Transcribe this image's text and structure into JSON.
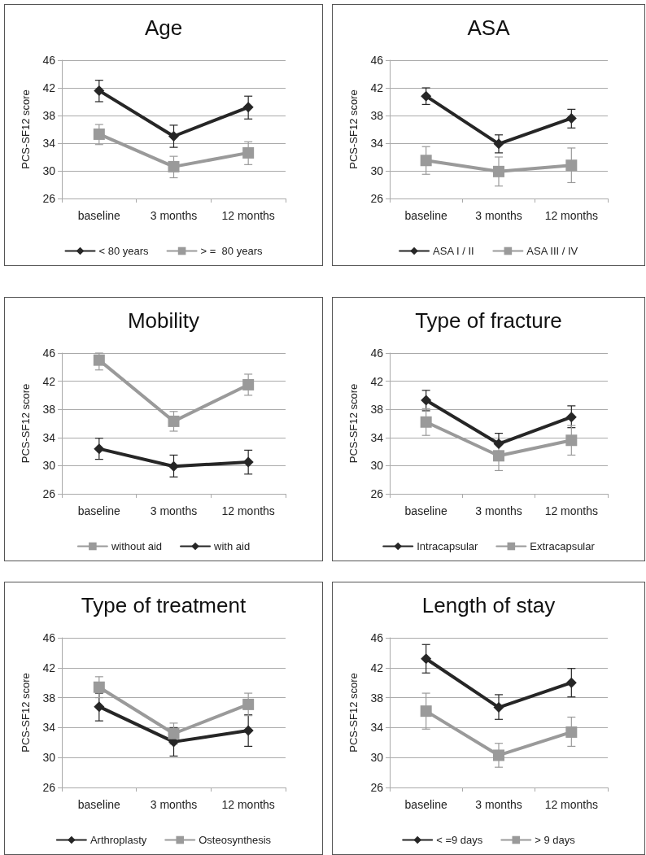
{
  "chart_data": [
    {
      "type": "line",
      "title": "Age",
      "ylabel": "PCS-SF12 score",
      "categories": [
        "baseline",
        "3 months",
        "12 months"
      ],
      "ylim": [
        26,
        46
      ],
      "yticks": [
        26,
        30,
        34,
        38,
        42,
        46
      ],
      "grid": "y",
      "legend": "bottom",
      "line_style": "solid",
      "series": [
        {
          "name": "< 80 years",
          "color": "#262626",
          "marker": "diamond",
          "values": [
            41.6,
            35.0,
            39.2
          ],
          "errors": [
            [
              40.0,
              43.1
            ],
            [
              33.4,
              36.6
            ],
            [
              37.5,
              40.8
            ]
          ]
        },
        {
          "name": "> =  80 years",
          "color": "#9a9a9a",
          "marker": "square",
          "values": [
            35.3,
            30.6,
            32.6
          ],
          "errors": [
            [
              33.8,
              36.7
            ],
            [
              29.0,
              32.1
            ],
            [
              30.9,
              34.2
            ]
          ]
        }
      ]
    },
    {
      "type": "line",
      "title": "ASA",
      "ylabel": "PCS-SF12 score",
      "categories": [
        "baseline",
        "3 months",
        "12 months"
      ],
      "ylim": [
        26,
        46
      ],
      "yticks": [
        26,
        30,
        34,
        38,
        42,
        46
      ],
      "grid": "y",
      "legend": "bottom",
      "line_style": "solid",
      "series": [
        {
          "name": "ASA I / II",
          "color": "#262626",
          "marker": "diamond",
          "values": [
            40.8,
            33.9,
            37.6
          ],
          "errors": [
            [
              39.6,
              42.0
            ],
            [
              32.6,
              35.2
            ],
            [
              36.2,
              38.9
            ]
          ]
        },
        {
          "name": "ASA III / IV",
          "color": "#9a9a9a",
          "marker": "square",
          "values": [
            31.5,
            29.9,
            30.8
          ],
          "errors": [
            [
              29.5,
              33.5
            ],
            [
              27.8,
              32.0
            ],
            [
              28.3,
              33.3
            ]
          ]
        }
      ]
    },
    {
      "type": "line",
      "title": "Mobility",
      "ylabel": "PCS-SF12 score",
      "categories": [
        "baseline",
        "3 months",
        "12 months"
      ],
      "ylim": [
        26,
        46
      ],
      "yticks": [
        26,
        30,
        34,
        38,
        42,
        46
      ],
      "grid": "y",
      "legend": "bottom",
      "line_style": "solid",
      "series": [
        {
          "name": "without aid",
          "color": "#9a9a9a",
          "marker": "square",
          "values": [
            45.0,
            36.3,
            41.5
          ],
          "errors": [
            [
              43.6,
              46.0
            ],
            [
              34.9,
              37.7
            ],
            [
              40.0,
              43.0
            ]
          ]
        },
        {
          "name": "with aid",
          "color": "#262626",
          "marker": "diamond",
          "values": [
            32.4,
            29.9,
            30.5
          ],
          "errors": [
            [
              30.9,
              33.9
            ],
            [
              28.4,
              31.5
            ],
            [
              28.8,
              32.2
            ]
          ]
        }
      ]
    },
    {
      "type": "line",
      "title": "Type of fracture",
      "ylabel": "PCS-SF12 score",
      "categories": [
        "baseline",
        "3 months",
        "12 months"
      ],
      "ylim": [
        26,
        46
      ],
      "yticks": [
        26,
        30,
        34,
        38,
        42,
        46
      ],
      "grid": "y",
      "legend": "bottom",
      "line_style": "solid",
      "series": [
        {
          "name": "Intracapsular",
          "color": "#262626",
          "marker": "diamond",
          "values": [
            39.3,
            33.1,
            36.9
          ],
          "errors": [
            [
              37.8,
              40.7
            ],
            [
              33.1,
              34.6
            ],
            [
              35.4,
              38.5
            ]
          ]
        },
        {
          "name": "Extracapsular",
          "color": "#9a9a9a",
          "marker": "square",
          "values": [
            36.2,
            31.4,
            33.6
          ],
          "errors": [
            [
              34.3,
              38.1
            ],
            [
              29.3,
              33.5
            ],
            [
              31.5,
              35.7
            ]
          ]
        }
      ]
    },
    {
      "type": "line",
      "title": "Type of treatment",
      "ylabel": "PCS-SF12 score",
      "categories": [
        "baseline",
        "3 months",
        "12 months"
      ],
      "ylim": [
        26,
        46
      ],
      "yticks": [
        26,
        30,
        34,
        38,
        42,
        46
      ],
      "grid": "y",
      "legend": "bottom",
      "line_style": "solid",
      "series": [
        {
          "name": "Arthroplasty",
          "color": "#262626",
          "marker": "diamond",
          "values": [
            36.8,
            32.1,
            33.6
          ],
          "errors": [
            [
              34.9,
              38.6
            ],
            [
              30.2,
              34.0
            ],
            [
              31.5,
              35.7
            ]
          ]
        },
        {
          "name": "Osteosynthesis",
          "color": "#9a9a9a",
          "marker": "square",
          "values": [
            39.4,
            33.2,
            37.1
          ],
          "errors": [
            [
              38.0,
              40.8
            ],
            [
              31.8,
              34.6
            ],
            [
              35.6,
              38.6
            ]
          ]
        }
      ]
    },
    {
      "type": "line",
      "title": "Length of stay",
      "ylabel": "PCS-SF12 score",
      "categories": [
        "baseline",
        "3 months",
        "12 months"
      ],
      "ylim": [
        26,
        46
      ],
      "yticks": [
        26,
        30,
        34,
        38,
        42,
        46
      ],
      "grid": "y",
      "legend": "bottom",
      "line_style": "solid",
      "series": [
        {
          "name": "< =9 days",
          "color": "#262626",
          "marker": "diamond",
          "values": [
            43.2,
            36.7,
            40.0
          ],
          "errors": [
            [
              41.3,
              45.1
            ],
            [
              35.1,
              38.4
            ],
            [
              38.1,
              41.9
            ]
          ]
        },
        {
          "name": "> 9 days",
          "color": "#9a9a9a",
          "marker": "square",
          "values": [
            36.2,
            30.3,
            33.4
          ],
          "errors": [
            [
              33.8,
              38.6
            ],
            [
              28.7,
              31.9
            ],
            [
              31.5,
              35.4
            ]
          ]
        }
      ]
    }
  ]
}
